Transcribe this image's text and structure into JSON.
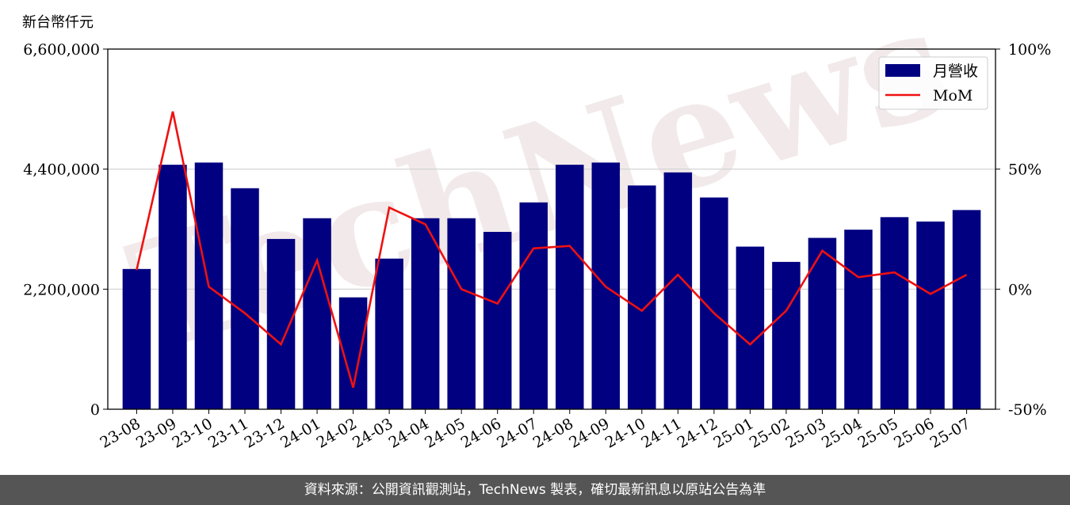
{
  "chart_data": {
    "type": "bar",
    "unit_label": "新台幣仟元",
    "categories": [
      "23-08",
      "23-09",
      "23-10",
      "23-11",
      "23-12",
      "24-01",
      "24-02",
      "24-03",
      "24-04",
      "24-05",
      "24-06",
      "24-07",
      "24-08",
      "24-09",
      "24-10",
      "24-11",
      "24-12",
      "25-01",
      "25-02",
      "25-03",
      "25-04",
      "25-05",
      "25-06",
      "25-07"
    ],
    "series": [
      {
        "name": "月營收",
        "axis": "left",
        "color": "#000080",
        "values": [
          2570000,
          4480000,
          4520000,
          4050000,
          3120000,
          3500000,
          2050000,
          2760000,
          3500000,
          3500000,
          3250000,
          3790000,
          4480000,
          4520000,
          4100000,
          4340000,
          3880000,
          2980000,
          2700000,
          3140000,
          3290000,
          3520000,
          3440000,
          3650000
        ]
      },
      {
        "name": "MoM",
        "type": "line",
        "axis": "right",
        "color": "#ee1111",
        "values": [
          8,
          74,
          1,
          -10,
          -23,
          12,
          -41,
          34,
          27,
          0,
          -6,
          17,
          18,
          1,
          -9,
          6,
          -10,
          -23,
          -9,
          16,
          5,
          7,
          -2,
          6
        ]
      }
    ],
    "yleft": {
      "ticks": [
        "0",
        "2,200,000",
        "4,400,000",
        "6,600,000"
      ],
      "ylim": [
        0,
        6600000
      ]
    },
    "yright": {
      "ticks": [
        "-50%",
        "0%",
        "50%",
        "100%"
      ],
      "ylim": [
        -50,
        100
      ]
    },
    "grid": "horizontal",
    "legend_position": "top-right",
    "watermark": "TechNews"
  },
  "footer": {
    "source": "資料來源：公開資訊觀測站，TechNews 製表，確切最新訊息以原站公告為準"
  }
}
